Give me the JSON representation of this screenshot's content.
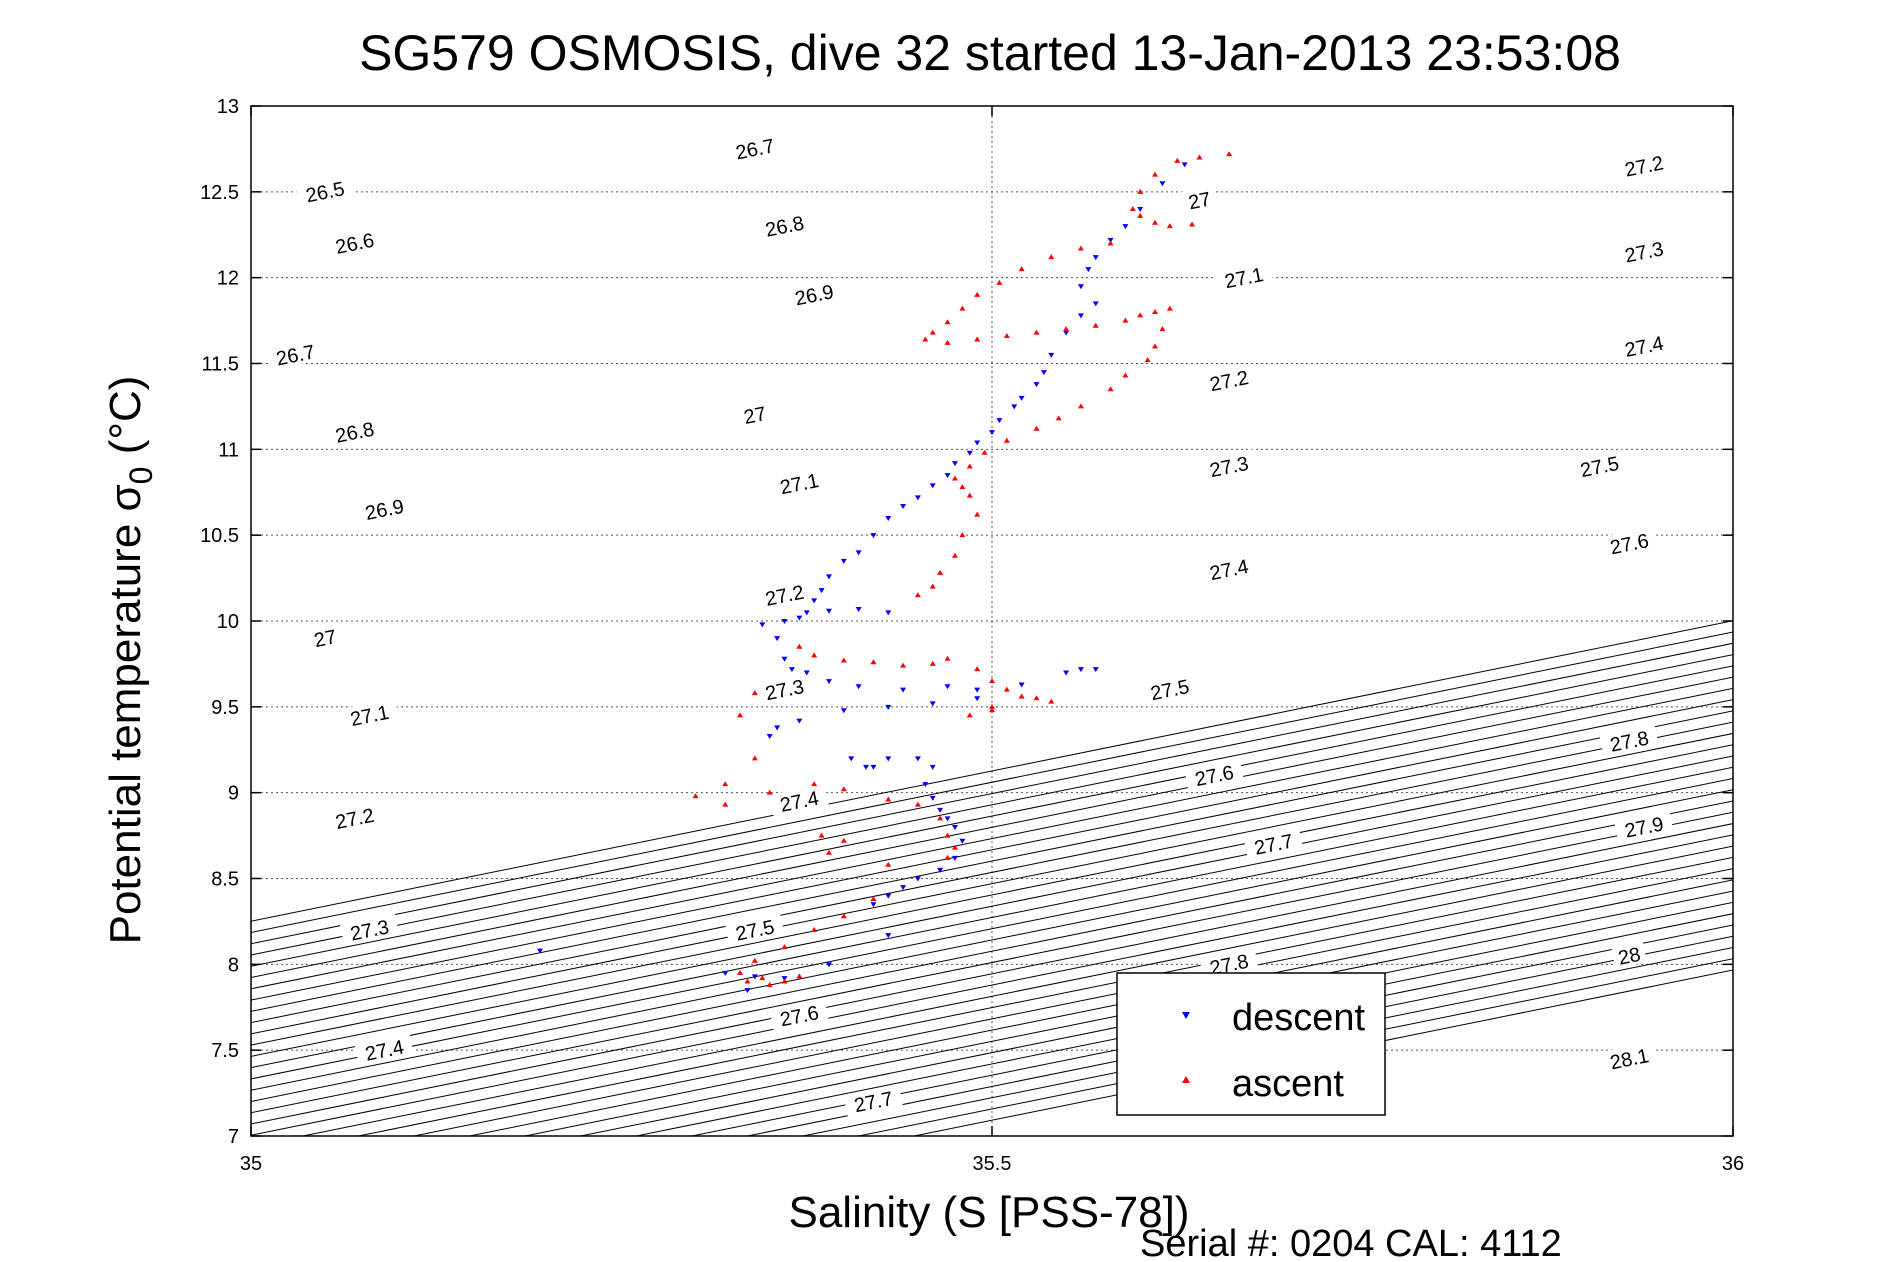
{
  "chart_data": {
    "type": "scatter",
    "title": "SG579 OSMOSIS, dive 32 started 13-Jan-2013 23:53:08",
    "xlabel": "Salinity (S [PSS-78])",
    "ylabel_main": "Potential temperature σ",
    "ylabel_sub": "0",
    "ylabel_unit": " (°C)",
    "footer": "Serial #: 0204  CAL: 4112",
    "xlim": [
      35,
      36
    ],
    "ylim": [
      7,
      13
    ],
    "xticks": [
      35,
      35.5,
      36
    ],
    "xtick_labels": [
      "35",
      "35.5",
      "36"
    ],
    "yticks": [
      7,
      7.5,
      8,
      8.5,
      9,
      9.5,
      10,
      10.5,
      11,
      11.5,
      12,
      12.5,
      13
    ],
    "ytick_labels": [
      "7",
      "7.5",
      "8",
      "8.5",
      "9",
      "9.5",
      "10",
      "10.5",
      "11",
      "11.5",
      "12",
      "12.5",
      "13"
    ],
    "grid": true,
    "legend_position": "bottom-right",
    "density_contours": [
      "26.5",
      "26.6",
      "26.7",
      "26.8",
      "26.9",
      "27",
      "27.1",
      "27.2",
      "27.3",
      "27.4",
      "27.5",
      "27.6",
      "27.7",
      "27.8",
      "27.9",
      "28",
      "28.1"
    ],
    "contour_label_points": [
      {
        "text": "26.5",
        "s": 35.05,
        "t": 12.5
      },
      {
        "text": "26.6",
        "s": 35.07,
        "t": 12.2
      },
      {
        "text": "26.7",
        "s": 35.03,
        "t": 11.55
      },
      {
        "text": "26.8",
        "s": 35.07,
        "t": 11.1
      },
      {
        "text": "26.9",
        "s": 35.09,
        "t": 10.65
      },
      {
        "text": "27",
        "s": 35.05,
        "t": 9.9
      },
      {
        "text": "27.1",
        "s": 35.08,
        "t": 9.45
      },
      {
        "text": "27.2",
        "s": 35.07,
        "t": 8.85
      },
      {
        "text": "27.3",
        "s": 35.08,
        "t": 8.2
      },
      {
        "text": "27.4",
        "s": 35.09,
        "t": 7.5
      },
      {
        "text": "26.7",
        "s": 35.34,
        "t": 12.75
      },
      {
        "text": "26.8",
        "s": 35.36,
        "t": 12.3
      },
      {
        "text": "26.9",
        "s": 35.38,
        "t": 11.9
      },
      {
        "text": "27",
        "s": 35.34,
        "t": 11.2
      },
      {
        "text": "27.1",
        "s": 35.37,
        "t": 10.8
      },
      {
        "text": "27.2",
        "s": 35.36,
        "t": 10.15
      },
      {
        "text": "27.3",
        "s": 35.36,
        "t": 9.6
      },
      {
        "text": "27.4",
        "s": 35.37,
        "t": 8.95
      },
      {
        "text": "27.5",
        "s": 35.34,
        "t": 8.2
      },
      {
        "text": "27.6",
        "s": 35.37,
        "t": 7.7
      },
      {
        "text": "27.7",
        "s": 35.42,
        "t": 7.2
      },
      {
        "text": "27",
        "s": 35.64,
        "t": 12.45
      },
      {
        "text": "27.1",
        "s": 35.67,
        "t": 12.0
      },
      {
        "text": "27.2",
        "s": 35.66,
        "t": 11.4
      },
      {
        "text": "27.3",
        "s": 35.66,
        "t": 10.9
      },
      {
        "text": "27.4",
        "s": 35.66,
        "t": 10.3
      },
      {
        "text": "27.5",
        "s": 35.62,
        "t": 9.6
      },
      {
        "text": "27.6",
        "s": 35.65,
        "t": 9.1
      },
      {
        "text": "27.7",
        "s": 35.69,
        "t": 8.7
      },
      {
        "text": "27.8",
        "s": 35.66,
        "t": 8.0
      },
      {
        "text": "27.2",
        "s": 35.94,
        "t": 12.65
      },
      {
        "text": "27.3",
        "s": 35.94,
        "t": 12.15
      },
      {
        "text": "27.4",
        "s": 35.94,
        "t": 11.6
      },
      {
        "text": "27.5",
        "s": 35.91,
        "t": 10.9
      },
      {
        "text": "27.6",
        "s": 35.93,
        "t": 10.45
      },
      {
        "text": "27.8",
        "s": 35.93,
        "t": 9.3
      },
      {
        "text": "27.9",
        "s": 35.94,
        "t": 8.8
      },
      {
        "text": "28",
        "s": 35.93,
        "t": 8.05
      },
      {
        "text": "28.1",
        "s": 35.93,
        "t": 7.45
      }
    ],
    "series": [
      {
        "name": "descent",
        "color": "#0000ff",
        "marker": "triangle-down",
        "points": [
          [
            35.63,
            12.66
          ],
          [
            35.615,
            12.55
          ],
          [
            35.6,
            12.4
          ],
          [
            35.59,
            12.3
          ],
          [
            35.58,
            12.22
          ],
          [
            35.57,
            12.12
          ],
          [
            35.565,
            12.05
          ],
          [
            35.56,
            11.95
          ],
          [
            35.57,
            11.85
          ],
          [
            35.56,
            11.78
          ],
          [
            35.55,
            11.68
          ],
          [
            35.54,
            11.55
          ],
          [
            35.535,
            11.45
          ],
          [
            35.53,
            11.38
          ],
          [
            35.52,
            11.3
          ],
          [
            35.515,
            11.25
          ],
          [
            35.505,
            11.17
          ],
          [
            35.5,
            11.1
          ],
          [
            35.49,
            11.04
          ],
          [
            35.485,
            10.98
          ],
          [
            35.475,
            10.92
          ],
          [
            35.47,
            10.85
          ],
          [
            35.46,
            10.79
          ],
          [
            35.45,
            10.72
          ],
          [
            35.44,
            10.67
          ],
          [
            35.43,
            10.6
          ],
          [
            35.42,
            10.5
          ],
          [
            35.41,
            10.4
          ],
          [
            35.4,
            10.35
          ],
          [
            35.39,
            10.26
          ],
          [
            35.385,
            10.18
          ],
          [
            35.38,
            10.12
          ],
          [
            35.375,
            10.05
          ],
          [
            35.37,
            10.02
          ],
          [
            35.36,
            10.0
          ],
          [
            35.345,
            9.98
          ],
          [
            35.39,
            10.06
          ],
          [
            35.41,
            10.07
          ],
          [
            35.43,
            10.05
          ],
          [
            35.355,
            9.9
          ],
          [
            35.36,
            9.78
          ],
          [
            35.365,
            9.72
          ],
          [
            35.375,
            9.7
          ],
          [
            35.39,
            9.65
          ],
          [
            35.41,
            9.62
          ],
          [
            35.44,
            9.6
          ],
          [
            35.47,
            9.62
          ],
          [
            35.49,
            9.6
          ],
          [
            35.52,
            9.63
          ],
          [
            35.55,
            9.7
          ],
          [
            35.56,
            9.72
          ],
          [
            35.57,
            9.72
          ],
          [
            35.49,
            9.55
          ],
          [
            35.46,
            9.52
          ],
          [
            35.43,
            9.5
          ],
          [
            35.4,
            9.48
          ],
          [
            35.37,
            9.42
          ],
          [
            35.355,
            9.38
          ],
          [
            35.35,
            9.33
          ],
          [
            35.42,
            9.15
          ],
          [
            35.43,
            9.2
          ],
          [
            35.45,
            9.2
          ],
          [
            35.46,
            9.15
          ],
          [
            35.455,
            9.05
          ],
          [
            35.46,
            8.97
          ],
          [
            35.465,
            8.9
          ],
          [
            35.47,
            8.85
          ],
          [
            35.475,
            8.8
          ],
          [
            35.48,
            8.72
          ],
          [
            35.475,
            8.62
          ],
          [
            35.465,
            8.55
          ],
          [
            35.45,
            8.5
          ],
          [
            35.44,
            8.45
          ],
          [
            35.43,
            8.4
          ],
          [
            35.42,
            8.35
          ],
          [
            35.43,
            8.17
          ],
          [
            35.39,
            8.0
          ],
          [
            35.32,
            7.95
          ],
          [
            35.34,
            7.93
          ],
          [
            35.36,
            7.92
          ],
          [
            35.335,
            7.85
          ],
          [
            35.195,
            8.08
          ],
          [
            35.405,
            9.2
          ],
          [
            35.415,
            9.15
          ]
        ]
      },
      {
        "name": "ascent",
        "color": "#ff0000",
        "marker": "triangle-up",
        "points": [
          [
            35.66,
            12.72
          ],
          [
            35.64,
            12.7
          ],
          [
            35.625,
            12.68
          ],
          [
            35.61,
            12.6
          ],
          [
            35.6,
            12.5
          ],
          [
            35.595,
            12.4
          ],
          [
            35.6,
            12.36
          ],
          [
            35.61,
            12.32
          ],
          [
            35.62,
            12.3
          ],
          [
            35.635,
            12.31
          ],
          [
            35.58,
            12.2
          ],
          [
            35.56,
            12.17
          ],
          [
            35.54,
            12.12
          ],
          [
            35.52,
            12.05
          ],
          [
            35.505,
            11.97
          ],
          [
            35.49,
            11.9
          ],
          [
            35.48,
            11.82
          ],
          [
            35.47,
            11.74
          ],
          [
            35.46,
            11.68
          ],
          [
            35.455,
            11.64
          ],
          [
            35.47,
            11.62
          ],
          [
            35.49,
            11.64
          ],
          [
            35.51,
            11.66
          ],
          [
            35.53,
            11.68
          ],
          [
            35.55,
            11.7
          ],
          [
            35.57,
            11.72
          ],
          [
            35.59,
            11.75
          ],
          [
            35.6,
            11.78
          ],
          [
            35.61,
            11.8
          ],
          [
            35.62,
            11.82
          ],
          [
            35.615,
            11.7
          ],
          [
            35.61,
            11.6
          ],
          [
            35.605,
            11.52
          ],
          [
            35.59,
            11.43
          ],
          [
            35.58,
            11.35
          ],
          [
            35.56,
            11.25
          ],
          [
            35.545,
            11.18
          ],
          [
            35.53,
            11.12
          ],
          [
            35.51,
            11.05
          ],
          [
            35.495,
            10.98
          ],
          [
            35.485,
            10.9
          ],
          [
            35.475,
            10.83
          ],
          [
            35.48,
            10.78
          ],
          [
            35.485,
            10.73
          ],
          [
            35.49,
            10.62
          ],
          [
            35.48,
            10.5
          ],
          [
            35.475,
            10.38
          ],
          [
            35.465,
            10.28
          ],
          [
            35.46,
            10.2
          ],
          [
            35.45,
            10.15
          ],
          [
            35.37,
            9.85
          ],
          [
            35.38,
            9.8
          ],
          [
            35.4,
            9.77
          ],
          [
            35.42,
            9.76
          ],
          [
            35.44,
            9.74
          ],
          [
            35.46,
            9.75
          ],
          [
            35.47,
            9.78
          ],
          [
            35.49,
            9.72
          ],
          [
            35.5,
            9.65
          ],
          [
            35.51,
            9.6
          ],
          [
            35.52,
            9.56
          ],
          [
            35.53,
            9.55
          ],
          [
            35.54,
            9.53
          ],
          [
            35.5,
            9.48
          ],
          [
            35.485,
            9.45
          ],
          [
            35.34,
            9.58
          ],
          [
            35.33,
            9.45
          ],
          [
            35.34,
            9.2
          ],
          [
            35.32,
            9.05
          ],
          [
            35.3,
            8.98
          ],
          [
            35.32,
            8.93
          ],
          [
            35.35,
            9.0
          ],
          [
            35.38,
            9.05
          ],
          [
            35.4,
            9.02
          ],
          [
            35.43,
            8.96
          ],
          [
            35.45,
            8.93
          ],
          [
            35.465,
            8.85
          ],
          [
            35.47,
            8.75
          ],
          [
            35.475,
            8.68
          ],
          [
            35.47,
            8.62
          ],
          [
            35.43,
            8.58
          ],
          [
            35.4,
            8.72
          ],
          [
            35.385,
            8.75
          ],
          [
            35.39,
            8.65
          ],
          [
            35.42,
            8.38
          ],
          [
            35.4,
            8.28
          ],
          [
            35.38,
            8.2
          ],
          [
            35.36,
            8.1
          ],
          [
            35.34,
            8.02
          ],
          [
            35.33,
            7.95
          ],
          [
            35.345,
            7.92
          ],
          [
            35.36,
            7.9
          ],
          [
            35.37,
            7.93
          ],
          [
            35.35,
            7.88
          ],
          [
            35.335,
            7.9
          ],
          [
            35.5,
            9.5
          ]
        ]
      }
    ]
  }
}
